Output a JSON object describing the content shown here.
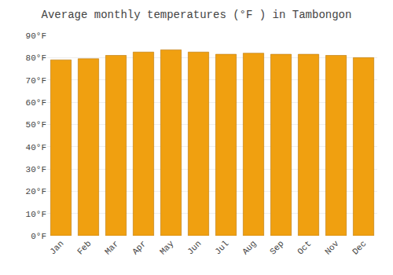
{
  "chart_data": {
    "type": "bar",
    "title": "Average monthly temperatures (°F ) in Tambongon",
    "categories": [
      "Jan",
      "Feb",
      "Mar",
      "Apr",
      "May",
      "Jun",
      "Jul",
      "Aug",
      "Sep",
      "Oct",
      "Nov",
      "Dec"
    ],
    "values": [
      79,
      79.5,
      81,
      82.5,
      83.5,
      82.5,
      81.5,
      82,
      81.5,
      81.5,
      81,
      80
    ],
    "color": "#F0A010",
    "ylim": [
      0,
      90
    ],
    "yticks": [
      {
        "value": 0,
        "label": "0°F"
      },
      {
        "value": 10,
        "label": "10°F"
      },
      {
        "value": 20,
        "label": "20°F"
      },
      {
        "value": 30,
        "label": "30°F"
      },
      {
        "value": 40,
        "label": "40°F"
      },
      {
        "value": 50,
        "label": "50°F"
      },
      {
        "value": 60,
        "label": "60°F"
      },
      {
        "value": 70,
        "label": "70°F"
      },
      {
        "value": 80,
        "label": "80°F"
      },
      {
        "value": 90,
        "label": "90°F"
      }
    ],
    "grid": true
  }
}
